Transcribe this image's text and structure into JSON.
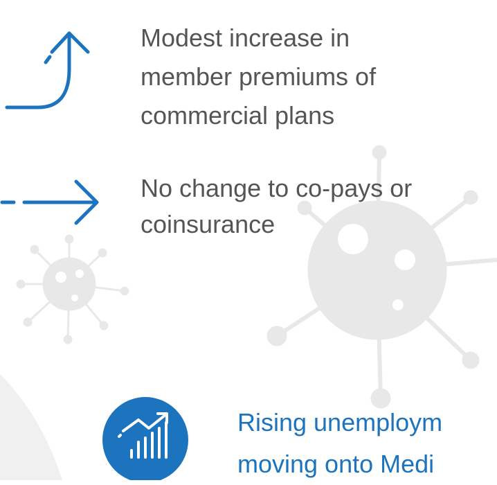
{
  "items": [
    {
      "lines": [
        "Modest increase in",
        "member premiums of",
        "commercial plans"
      ]
    },
    {
      "lines": [
        "No change to co-pays or",
        "coinsurance"
      ]
    },
    {
      "lines": [
        "Rising unemploym",
        "moving onto Medi"
      ]
    }
  ]
}
